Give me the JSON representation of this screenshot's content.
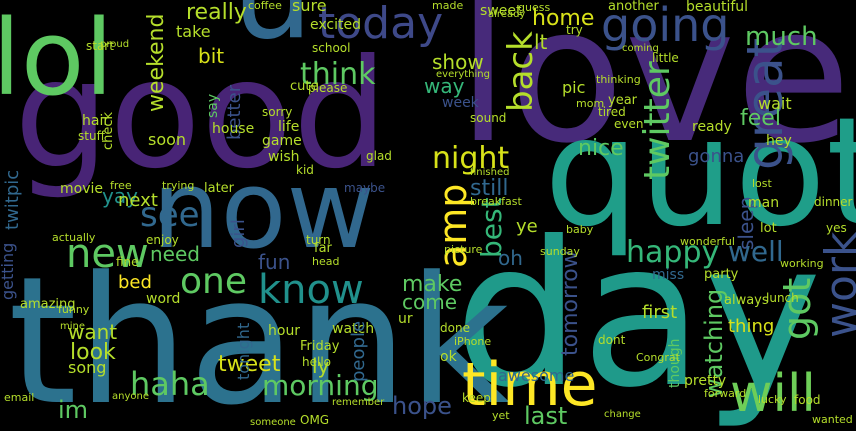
{
  "image_type": "word cloud",
  "background_color": "#000000",
  "palette": [
    "#440154",
    "#3b528b",
    "#21918c",
    "#5ec962",
    "#fde725"
  ],
  "words": {
    "love": "love",
    "good": "good",
    "quot": "quot",
    "day": "day",
    "thank": "thank",
    "now": "now",
    "lol": "lol",
    "u": "u",
    "today": "today",
    "going": "going",
    "great": "great",
    "time": "time",
    "work": "work",
    "got": "got",
    "will": "will",
    "one": "one",
    "know": "know",
    "new": "new",
    "see": "see",
    "amp": "amp",
    "night": "night",
    "twitter": "twitter",
    "happy": "happy",
    "back": "back",
    "think": "think",
    "home": "home",
    "really": "really",
    "much": "much",
    "haha": "haha",
    "morning": "morning",
    "hope": "hope",
    "watching": "watching",
    "tweet": "tweet",
    "look": "look",
    "want": "want",
    "make": "make",
    "come": "come",
    "thing": "thing",
    "best": "best",
    "need": "need",
    "bed": "bed",
    "still": "still",
    "nice": "nice",
    "feel": "feel",
    "sleep": "sleep",
    "tomorrow": "tomorrow",
    "well": "well",
    "last": "last",
    "weekend": "weekend",
    "yay": "yay",
    "next": "next",
    "movie": "movie",
    "soon": "soon",
    "song": "song",
    "bit": "bit",
    "take": "take",
    "way": "way",
    "show": "show",
    "better": "better",
    "gonna": "gonna",
    "oh": "oh",
    "ready": "ready",
    "first": "first",
    "im": "im",
    "lt": "lt",
    "ye": "ye",
    "girl": "girl",
    "sure": "sure",
    "sweet": "sweet",
    "excited": "excited",
    "another": "another",
    "beautiful": "beautiful",
    "say": "say",
    "wait": "wait",
    "school": "school",
    "week": "week",
    "fun": "fun",
    "hour": "hour",
    "watch": "watch",
    "Friday": "Friday",
    "people": "people",
    "awesome": "awesome",
    "house": "house",
    "pretty": "pretty",
    "done": "done",
    "though": "though",
    "maybe": "maybe",
    "miss": "miss",
    "man": "man",
    "hey": "hey",
    "party": "party",
    "always": "always",
    "lunch": "lunch",
    "wish": "wish",
    "game": "game",
    "life": "life",
    "later": "later",
    "sorry": "sorry",
    "coffee": "coffee",
    "please": "please",
    "cute": "cute",
    "guess": "guess",
    "made": "made",
    "keep": "keep",
    "dont": "dont",
    "picture": "picture",
    "hair": "hair",
    "stuff": "stuff",
    "check": "check",
    "amazing": "amazing",
    "hello": "hello",
    "ur": "ur",
    "ly": "ly",
    "tonight": "tonight",
    "ok": "ok",
    "dinner": "dinner",
    "food": "food",
    "yes": "yes",
    "lost": "lost",
    "wonderful": "wonderful",
    "sunday": "sunday",
    "enjoy": "enjoy",
    "fine": "fine",
    "getting": "getting",
    "working": "working",
    "year": "year",
    "tired": "tired",
    "twitpic": "twitpic",
    "kid": "kid",
    "glad": "glad",
    "iPhone": "iPhone",
    "OMG": "OMG",
    "start": "start",
    "proud": "proud",
    "mom": "mom",
    "try": "try",
    "pic": "pic",
    "even": "even",
    "little": "little",
    "coming": "coming",
    "lot": "lot",
    "thinking": "thinking",
    "sound": "sound",
    "breakfast": "breakfast",
    "finished": "finished",
    "Congrat": "Congrat",
    "forward": "forward",
    "someone": "someone",
    "wanted": "wanted",
    "actually": "actually",
    "remember": "remember",
    "already": "already",
    "everything": "everything",
    "turn": "turn",
    "far": "far",
    "head": "head",
    "free": "free",
    "baby": "baby",
    "trying": "trying",
    "funny": "funny",
    "word": "word",
    "yet": "yet",
    "change": "change",
    "lucky": "lucky",
    "mine": "mine",
    "email": "email",
    "anyone": "anyone"
  }
}
